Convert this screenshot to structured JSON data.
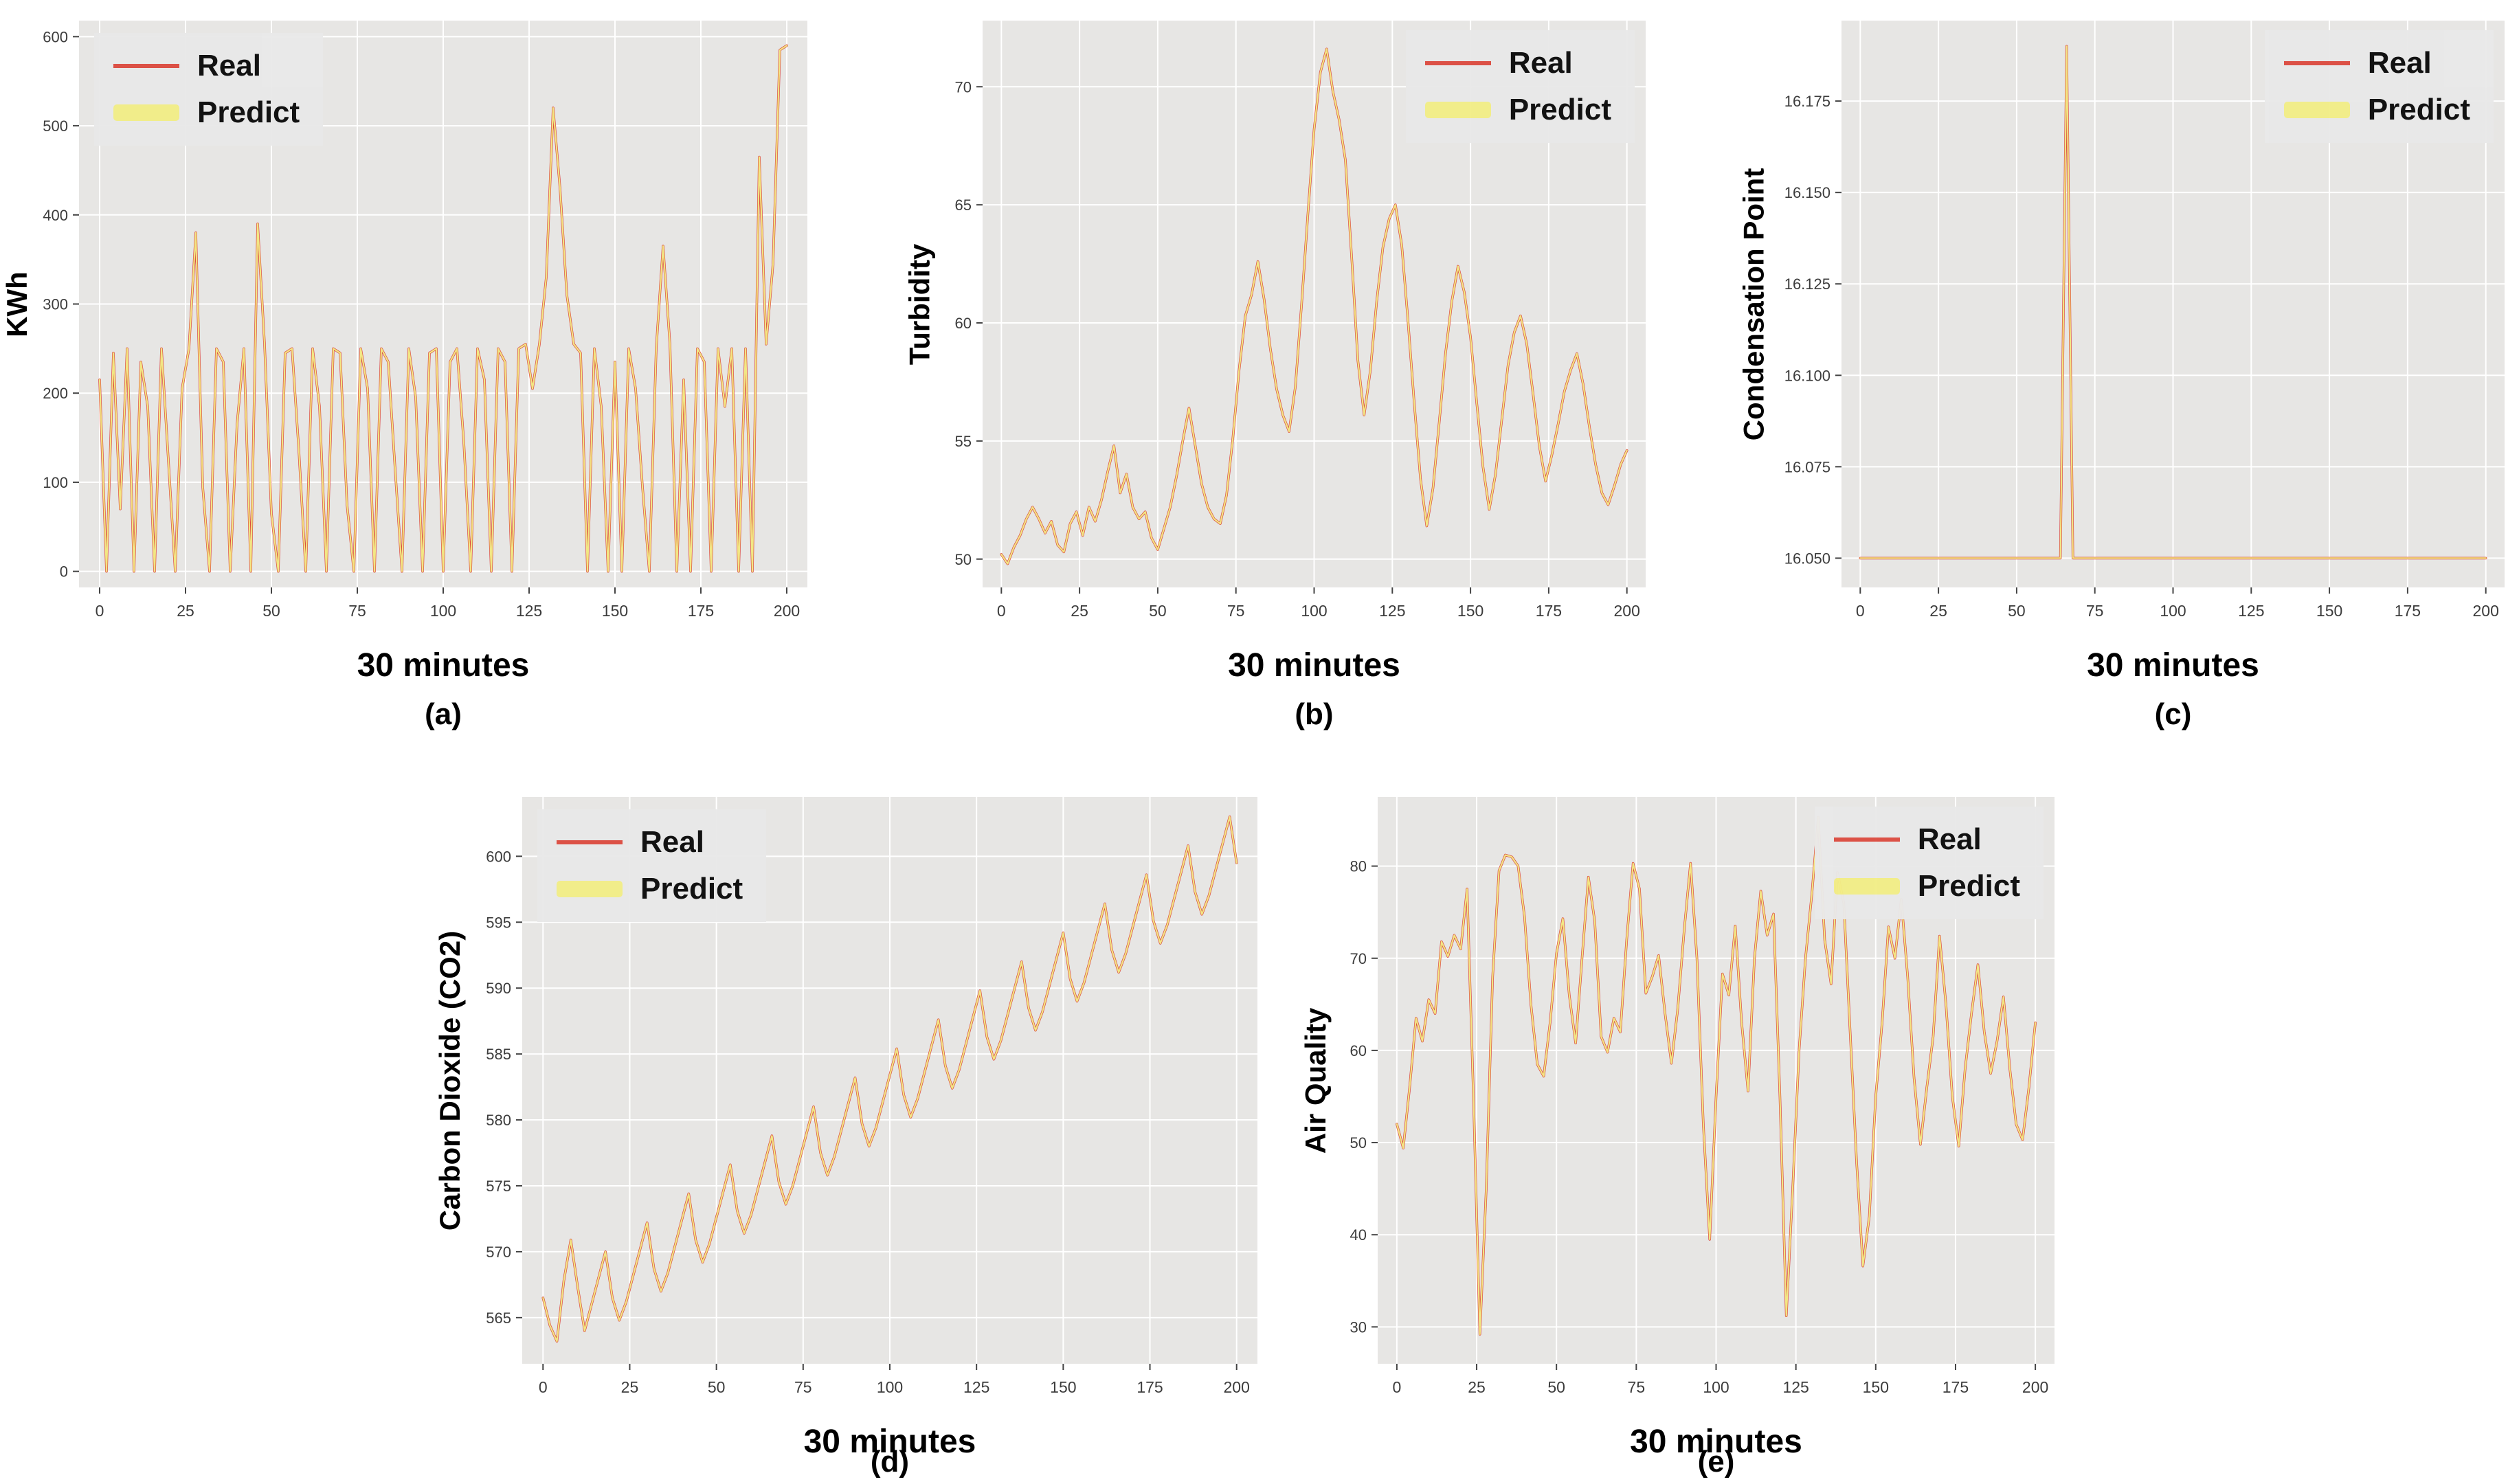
{
  "legend": {
    "real": "Real",
    "predict": "Predict"
  },
  "colors": {
    "real": "#dc4b40",
    "predict": "#f2ee87",
    "plot_bg": "#e7e6e4",
    "grid": "#ffffff",
    "tick_mark": "#444444",
    "tick_text": "#3c3c3c",
    "label_text": "#000000",
    "legend_bg": "#e9e9e9"
  },
  "chart_data": [
    {
      "id": "a",
      "type": "line",
      "caption": "(a)",
      "xlabel": "30 minutes",
      "ylabel": "KWh",
      "x": {
        "start": 0,
        "step": 2
      },
      "xlim": [
        -6,
        206
      ],
      "ylim": [
        -18,
        618
      ],
      "xticks": [
        0,
        25,
        50,
        75,
        100,
        125,
        150,
        175,
        200
      ],
      "yticks": [
        0,
        100,
        200,
        300,
        400,
        500,
        600
      ],
      "grid": true,
      "legend_pos": "top-left",
      "series": [
        {
          "name": "Real",
          "color_key": "real",
          "values": [
            215,
            0,
            245,
            70,
            250,
            0,
            235,
            185,
            0,
            250,
            125,
            0,
            205,
            250,
            380,
            95,
            0,
            250,
            235,
            0,
            165,
            250,
            0,
            390,
            255,
            65,
            0,
            245,
            250,
            135,
            0,
            250,
            185,
            0,
            250,
            245,
            75,
            0,
            250,
            205,
            0,
            250,
            235,
            115,
            0,
            250,
            195,
            0,
            245,
            250,
            0,
            235,
            250,
            145,
            0,
            250,
            215,
            0,
            250,
            235,
            0,
            250,
            255,
            205,
            255,
            330,
            520,
            430,
            310,
            255,
            245,
            0,
            250,
            185,
            0,
            235,
            0,
            250,
            205,
            95,
            0,
            250,
            365,
            255,
            0,
            215,
            0,
            250,
            235,
            0,
            250,
            185,
            250,
            0,
            250,
            0,
            465,
            255,
            345,
            585,
            590
          ]
        },
        {
          "name": "Predict",
          "color_key": "predict",
          "values_equal_to": "Real",
          "note": "Predict overlaps Real almost exactly"
        }
      ]
    },
    {
      "id": "b",
      "type": "line",
      "caption": "(b)",
      "xlabel": "30 minutes",
      "ylabel": "Turbidity",
      "x": {
        "start": 0,
        "step": 2
      },
      "xlim": [
        -6,
        206
      ],
      "ylim": [
        48.8,
        72.8
      ],
      "xticks": [
        0,
        25,
        50,
        75,
        100,
        125,
        150,
        175,
        200
      ],
      "yticks": [
        50,
        55,
        60,
        65,
        70
      ],
      "grid": true,
      "legend_pos": "top-right",
      "series": [
        {
          "name": "Real",
          "color_key": "real",
          "values": [
            50.2,
            49.8,
            50.5,
            51.0,
            51.7,
            52.2,
            51.7,
            51.1,
            51.6,
            50.6,
            50.3,
            51.5,
            52.0,
            51.0,
            52.2,
            51.6,
            52.5,
            53.7,
            54.8,
            52.8,
            53.6,
            52.2,
            51.7,
            52.0,
            50.9,
            50.4,
            51.3,
            52.2,
            53.5,
            55.0,
            56.4,
            54.8,
            53.2,
            52.2,
            51.7,
            51.5,
            52.7,
            55.1,
            58.0,
            60.3,
            61.2,
            62.6,
            61.0,
            58.9,
            57.2,
            56.1,
            55.4,
            57.3,
            60.8,
            64.6,
            68.2,
            70.6,
            71.6,
            69.8,
            68.6,
            66.9,
            62.8,
            58.4,
            56.1,
            58.0,
            60.9,
            63.2,
            64.4,
            65.0,
            63.3,
            60.1,
            56.6,
            53.4,
            51.4,
            53.0,
            55.8,
            58.7,
            60.9,
            62.4,
            61.3,
            59.4,
            56.6,
            53.9,
            52.1,
            53.6,
            55.9,
            58.2,
            59.6,
            60.3,
            59.1,
            57.0,
            54.8,
            53.3,
            54.4,
            55.7,
            57.1,
            58.0,
            58.7,
            57.4,
            55.6,
            54.0,
            52.8,
            52.3,
            53.1,
            54.0,
            54.6
          ]
        },
        {
          "name": "Predict",
          "color_key": "predict",
          "values_equal_to": "Real",
          "note": "Predict overlaps Real almost exactly"
        }
      ]
    },
    {
      "id": "c",
      "type": "line",
      "caption": "(c)",
      "xlabel": "30 minutes",
      "ylabel": "Condensation Point",
      "x": {
        "start": 0,
        "step": 2
      },
      "xlim": [
        -6,
        206
      ],
      "ylim": [
        16.042,
        16.197
      ],
      "xticks": [
        0,
        25,
        50,
        75,
        100,
        125,
        150,
        175,
        200
      ],
      "yticks": [
        16.05,
        16.075,
        16.1,
        16.125,
        16.15,
        16.175
      ],
      "ytick_labels": [
        "16.050",
        "16.075",
        "16.100",
        "16.125",
        "16.150",
        "16.175"
      ],
      "grid": true,
      "legend_pos": "top-right",
      "series": [
        {
          "name": "Real",
          "color_key": "real",
          "values": [
            16.05,
            16.05,
            16.05,
            16.05,
            16.05,
            16.05,
            16.05,
            16.05,
            16.05,
            16.05,
            16.05,
            16.05,
            16.05,
            16.05,
            16.05,
            16.05,
            16.05,
            16.05,
            16.05,
            16.05,
            16.05,
            16.05,
            16.05,
            16.05,
            16.05,
            16.05,
            16.05,
            16.05,
            16.05,
            16.05,
            16.05,
            16.05,
            16.05,
            16.19,
            16.05,
            16.05,
            16.05,
            16.05,
            16.05,
            16.05,
            16.05,
            16.05,
            16.05,
            16.05,
            16.05,
            16.05,
            16.05,
            16.05,
            16.05,
            16.05,
            16.05,
            16.05,
            16.05,
            16.05,
            16.05,
            16.05,
            16.05,
            16.05,
            16.05,
            16.05,
            16.05,
            16.05,
            16.05,
            16.05,
            16.05,
            16.05,
            16.05,
            16.05,
            16.05,
            16.05,
            16.05,
            16.05,
            16.05,
            16.05,
            16.05,
            16.05,
            16.05,
            16.05,
            16.05,
            16.05,
            16.05,
            16.05,
            16.05,
            16.05,
            16.05,
            16.05,
            16.05,
            16.05,
            16.05,
            16.05,
            16.05,
            16.05,
            16.05,
            16.05,
            16.05,
            16.05,
            16.05,
            16.05,
            16.05,
            16.05,
            16.05
          ]
        },
        {
          "name": "Predict",
          "color_key": "predict",
          "values_equal_to": "Real",
          "note": "Predict overlaps Real almost exactly"
        }
      ]
    },
    {
      "id": "d",
      "type": "line",
      "caption": "(d)",
      "xlabel": "30 minutes",
      "ylabel": "Carbon Dioxide (CO2)",
      "x": {
        "start": 0,
        "step": 2
      },
      "xlim": [
        -6,
        206
      ],
      "ylim": [
        561.5,
        604.5
      ],
      "xticks": [
        0,
        25,
        50,
        75,
        100,
        125,
        150,
        175,
        200
      ],
      "yticks": [
        565,
        570,
        575,
        580,
        585,
        590,
        595,
        600
      ],
      "grid": true,
      "legend_pos": "top-left",
      "series": [
        {
          "name": "Real",
          "color_key": "real",
          "values": [
            566.5,
            564.4,
            563.2,
            567.8,
            570.9,
            567.3,
            564.0,
            566.0,
            568.0,
            570.0,
            566.5,
            564.8,
            566.2,
            568.2,
            570.2,
            572.2,
            568.7,
            567.0,
            568.4,
            570.4,
            572.4,
            574.4,
            570.9,
            569.2,
            570.6,
            572.6,
            574.6,
            576.6,
            573.1,
            571.4,
            572.8,
            574.8,
            576.8,
            578.8,
            575.3,
            573.6,
            575.0,
            577.0,
            579.0,
            581.0,
            577.5,
            575.8,
            577.2,
            579.2,
            581.2,
            583.2,
            579.7,
            578.0,
            579.4,
            581.4,
            583.4,
            585.4,
            581.9,
            580.2,
            581.6,
            583.6,
            585.6,
            587.6,
            584.1,
            582.4,
            583.8,
            585.8,
            587.8,
            589.8,
            586.3,
            584.6,
            586.0,
            588.0,
            590.0,
            592.0,
            588.5,
            586.8,
            588.2,
            590.2,
            592.2,
            594.2,
            590.7,
            589.0,
            590.4,
            592.4,
            594.4,
            596.4,
            592.9,
            591.2,
            592.6,
            594.6,
            596.6,
            598.6,
            595.1,
            593.4,
            594.8,
            596.8,
            598.8,
            600.8,
            597.3,
            595.6,
            597.0,
            599.0,
            601.0,
            603.0,
            599.5
          ]
        },
        {
          "name": "Predict",
          "color_key": "predict",
          "values_equal_to": "Real",
          "note": "Predict overlaps Real almost exactly"
        }
      ]
    },
    {
      "id": "e",
      "type": "line",
      "caption": "(e)",
      "xlabel": "30 minutes",
      "ylabel": "Air Quality",
      "x": {
        "start": 0,
        "step": 2
      },
      "xlim": [
        -6,
        206
      ],
      "ylim": [
        26,
        87.5
      ],
      "xticks": [
        0,
        25,
        50,
        75,
        100,
        125,
        150,
        175,
        200
      ],
      "yticks": [
        30,
        40,
        50,
        60,
        70,
        80
      ],
      "grid": true,
      "legend_pos": "top-right",
      "series": [
        {
          "name": "Real",
          "color_key": "real",
          "values": [
            52.0,
            49.4,
            56.0,
            63.5,
            61.0,
            65.5,
            64.0,
            71.8,
            70.2,
            72.5,
            71.0,
            77.5,
            55.0,
            29.2,
            45.0,
            68.0,
            79.5,
            81.2,
            81.0,
            80.0,
            74.5,
            65.0,
            58.5,
            57.2,
            63.0,
            70.5,
            74.3,
            66.0,
            60.8,
            70.0,
            78.8,
            74.0,
            61.5,
            59.8,
            63.5,
            62.0,
            72.0,
            80.3,
            77.5,
            66.2,
            68.0,
            70.3,
            64.0,
            58.6,
            64.5,
            73.0,
            80.3,
            70.0,
            52.0,
            39.5,
            55.0,
            68.3,
            66.0,
            73.5,
            63.0,
            55.6,
            70.0,
            77.3,
            72.5,
            74.8,
            55.0,
            31.2,
            45.0,
            60.0,
            70.0,
            77.0,
            85.3,
            72.0,
            67.2,
            79.3,
            76.0,
            62.0,
            48.0,
            36.6,
            42.0,
            55.0,
            63.0,
            73.4,
            70.0,
            76.4,
            68.0,
            57.0,
            49.8,
            56.0,
            61.5,
            72.4,
            65.0,
            55.0,
            49.6,
            58.0,
            64.0,
            69.3,
            62.0,
            57.5,
            61.0,
            65.8,
            58.0,
            52.0,
            50.3,
            56.0,
            63.0
          ]
        },
        {
          "name": "Predict",
          "color_key": "predict",
          "values_equal_to": "Real",
          "note": "Predict overlaps Real almost exactly"
        }
      ]
    }
  ]
}
